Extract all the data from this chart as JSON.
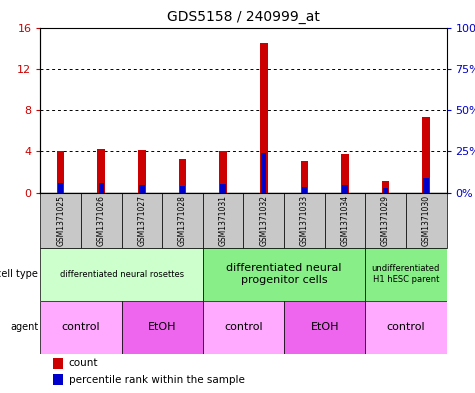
{
  "title": "GDS5158 / 240999_at",
  "samples": [
    "GSM1371025",
    "GSM1371026",
    "GSM1371027",
    "GSM1371028",
    "GSM1371031",
    "GSM1371032",
    "GSM1371033",
    "GSM1371034",
    "GSM1371029",
    "GSM1371030"
  ],
  "count_values": [
    4.0,
    4.25,
    4.1,
    3.3,
    4.05,
    14.5,
    3.1,
    3.7,
    1.1,
    7.3
  ],
  "percentile_values": [
    5.5,
    5.5,
    4.5,
    4.0,
    5.0,
    24.0,
    3.5,
    4.5,
    2.5,
    9.0
  ],
  "count_color": "#cc0000",
  "percentile_color": "#0000cc",
  "ylim_left": [
    0,
    16
  ],
  "ylim_right": [
    0,
    100
  ],
  "yticks_left": [
    0,
    4,
    8,
    12,
    16
  ],
  "ytick_labels_left": [
    "0",
    "4",
    "8",
    "12",
    "16"
  ],
  "yticks_right": [
    0,
    25,
    50,
    75,
    100
  ],
  "ytick_labels_right": [
    "0%",
    "25%",
    "50%",
    "75%",
    "100%"
  ],
  "cell_type_groups": [
    {
      "label": "differentiated neural rosettes",
      "start": 0,
      "end": 3,
      "color": "#ccffcc",
      "fontsize": 6
    },
    {
      "label": "differentiated neural\nprogenitor cells",
      "start": 4,
      "end": 7,
      "color": "#88ee88",
      "fontsize": 8
    },
    {
      "label": "undifferentiated\nH1 hESC parent",
      "start": 8,
      "end": 9,
      "color": "#88ee88",
      "fontsize": 6
    }
  ],
  "agent_groups": [
    {
      "label": "control",
      "start": 0,
      "end": 1,
      "color": "#ffaaff"
    },
    {
      "label": "EtOH",
      "start": 2,
      "end": 3,
      "color": "#ee66ee"
    },
    {
      "label": "control",
      "start": 4,
      "end": 5,
      "color": "#ffaaff"
    },
    {
      "label": "EtOH",
      "start": 6,
      "end": 7,
      "color": "#ee66ee"
    },
    {
      "label": "control",
      "start": 8,
      "end": 9,
      "color": "#ffaaff"
    }
  ],
  "bar_bg_color": "#c8c8c8",
  "bar_width": 0.75,
  "cell_type_label": "cell type",
  "agent_label": "agent",
  "legend_count": "count",
  "legend_pct": "percentile rank within the sample"
}
